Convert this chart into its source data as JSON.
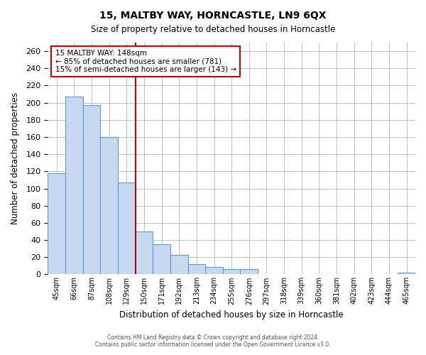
{
  "title": "15, MALTBY WAY, HORNCASTLE, LN9 6QX",
  "subtitle": "Size of property relative to detached houses in Horncastle",
  "xlabel": "Distribution of detached houses by size in Horncastle",
  "ylabel": "Number of detached properties",
  "bar_labels": [
    "45sqm",
    "66sqm",
    "87sqm",
    "108sqm",
    "129sqm",
    "150sqm",
    "171sqm",
    "192sqm",
    "213sqm",
    "234sqm",
    "255sqm",
    "276sqm",
    "297sqm",
    "318sqm",
    "339sqm",
    "360sqm",
    "381sqm",
    "402sqm",
    "423sqm",
    "444sqm",
    "465sqm"
  ],
  "bar_values": [
    118,
    207,
    197,
    160,
    107,
    50,
    35,
    23,
    12,
    9,
    6,
    6,
    0,
    0,
    0,
    0,
    0,
    0,
    0,
    0,
    2
  ],
  "bar_color": "#c6d9f1",
  "bar_edge_color": "#5b9bd5",
  "marker_line_index": 5,
  "marker_line_color": "#cc0000",
  "annotation_title": "15 MALTBY WAY: 148sqm",
  "annotation_line1": "← 85% of detached houses are smaller (781)",
  "annotation_line2": "15% of semi-detached houses are larger (143) →",
  "annotation_box_color": "#ffffff",
  "annotation_box_edge_color": "#cc0000",
  "ylim": [
    0,
    270
  ],
  "yticks": [
    0,
    20,
    40,
    60,
    80,
    100,
    120,
    140,
    160,
    180,
    200,
    220,
    240,
    260
  ],
  "footer_line1": "Contains HM Land Registry data © Crown copyright and database right 2024.",
  "footer_line2": "Contains public sector information licensed under the Open Government Licence v3.0.",
  "bg_color": "#ffffff",
  "grid_color": "#c0c0c0"
}
